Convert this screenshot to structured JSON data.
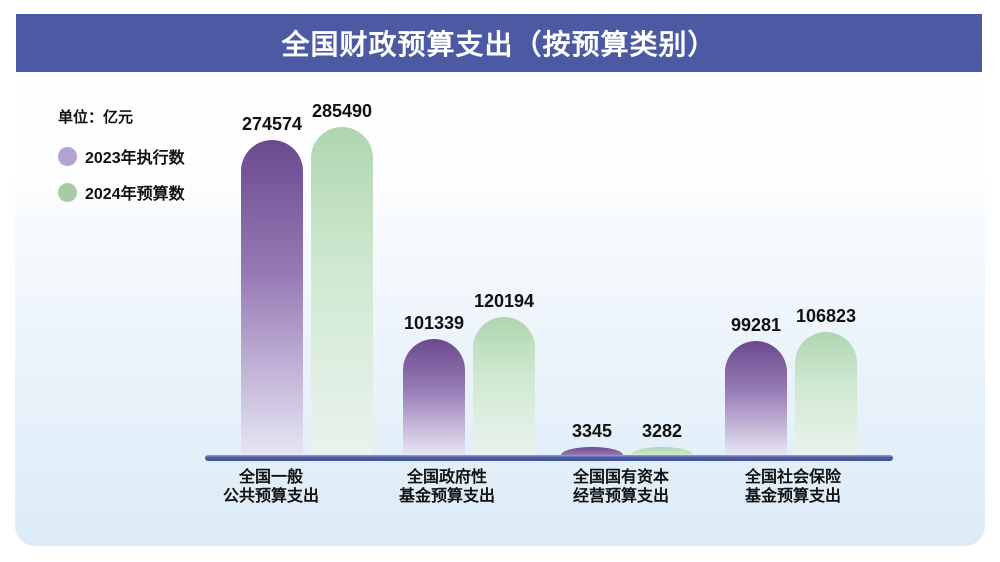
{
  "page": {
    "title": "全国财政预算支出（按预算类别）"
  },
  "legend": {
    "unit_label": "单位：亿元",
    "items": [
      {
        "label": "2023年执行数",
        "color": "#b4a2d2"
      },
      {
        "label": "2024年预算数",
        "color": "#a9cba4"
      }
    ]
  },
  "colors": {
    "banner": "#4c5aa3",
    "baseline": "#4b59a3",
    "text": "#111111"
  },
  "chart_data": {
    "type": "bar",
    "title": "全国财政预算支出（按预算类别）",
    "unit": "亿元",
    "categories": [
      [
        "全国一般",
        "公共预算支出"
      ],
      [
        "全国政府性",
        "基金预算支出"
      ],
      [
        "全国国有资本",
        "经营预算支出"
      ],
      [
        "全国社会保险",
        "基金预算支出"
      ]
    ],
    "series": [
      {
        "name": "2023年执行数",
        "values": [
          274574,
          101339,
          3345,
          99281
        ],
        "color_top": "#6b4a8e",
        "color_mid": "#9579b4",
        "color_fade": "#e7e6f4"
      },
      {
        "name": "2024年预算数",
        "values": [
          285490,
          120194,
          3282,
          106823
        ],
        "color_top": "#aed6b0",
        "color_mid": "#cfe8d0",
        "color_fade": "#eaf3ee"
      }
    ],
    "ylim": [
      0,
      300000
    ],
    "grid": false,
    "legend_position": "top-left",
    "value_labels": true
  }
}
